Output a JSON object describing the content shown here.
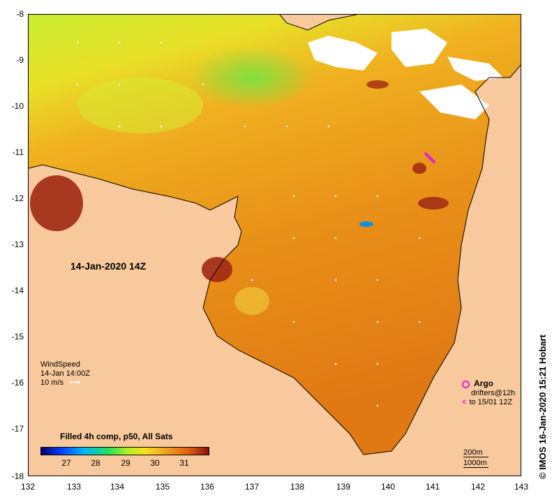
{
  "map": {
    "y_labels": [
      "-8",
      "-9",
      "-10",
      "-11",
      "-12",
      "-13",
      "-14",
      "-15",
      "-16",
      "-17",
      "-18"
    ],
    "x_labels": [
      "132",
      "133",
      "134",
      "135",
      "136",
      "137",
      "138",
      "139",
      "140",
      "141",
      "142",
      "143"
    ],
    "date_label": "14-Jan-2020 14Z",
    "wind": {
      "title": "WindSpeed",
      "time": "14-Jan 14:00Z",
      "scale": "10 m/s"
    },
    "argo": {
      "title": "Argo",
      "drifters_line1": "drifters@12h",
      "drifters_line2": "to 15/01 12Z"
    },
    "scale": {
      "contour1": "200m",
      "contour2": "1000m"
    },
    "colorbar": {
      "title": "Filled 4h comp, p50, All Sats",
      "ticks": [
        "27",
        "28",
        "29",
        "30",
        "31"
      ]
    },
    "credit": "© IMOS 16-Jan-2020 15:21 Hobart",
    "colors": {
      "land": "#f8c99c",
      "argo": "#e020e0"
    }
  }
}
